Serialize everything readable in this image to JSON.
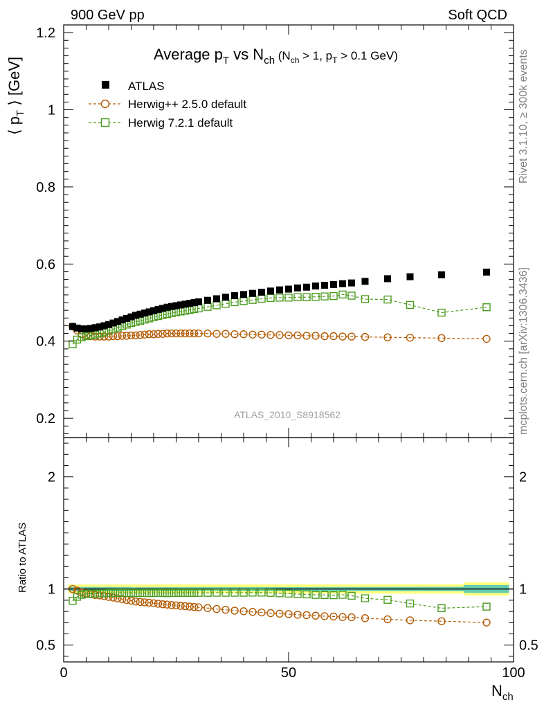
{
  "header": {
    "left": "900 GeV pp",
    "right": "Soft QCD"
  },
  "side_labels": {
    "rivet": "Rivet 3.1.10, ≥ 300k events",
    "mcplots": "mcplots.cern.ch [arXiv:1306.3436]"
  },
  "watermark": "ATLAS_2010_S8918562",
  "chart_data": {
    "type": "scatter",
    "title": "Average p_T vs N_ch (N_ch > 1, p_T > 0.1 GeV)",
    "title_parts": {
      "main": "Average p",
      "main_sub": "T",
      "vs": " vs N",
      "vs_sub": "ch",
      "cond_open": " (N",
      "cond_sub1": "ch",
      "cond_mid": " > 1, p",
      "cond_sub2": "T",
      "cond_end": " > 0.1 GeV)"
    },
    "xlabel": "N",
    "xlabel_sub": "ch",
    "ylabel_main_parts": {
      "open": "⟨ p",
      "sub": "T",
      "close": " ⟩ [GeV]"
    },
    "ylabel_ratio": "Ratio to ATLAS",
    "xlim": [
      0,
      100
    ],
    "ylim_main": [
      0.15,
      1.22
    ],
    "ylim_ratio": [
      0.35,
      2.35
    ],
    "x_ticks": [
      "0",
      "50",
      "100"
    ],
    "y_ticks_main": [
      "0.2",
      "0.4",
      "0.6",
      "0.8",
      "1",
      "1.2"
    ],
    "y_ticks_ratio": [
      "0.5",
      "1",
      "2"
    ],
    "x": [
      2,
      3,
      4,
      5,
      6,
      7,
      8,
      9,
      10,
      11,
      12,
      13,
      14,
      15,
      16,
      17,
      18,
      19,
      20,
      21,
      22,
      23,
      24,
      25,
      26,
      27,
      28,
      29,
      30,
      32,
      34,
      36,
      38,
      40,
      42,
      44,
      46,
      48,
      50,
      52,
      54,
      56,
      58,
      60,
      62,
      64,
      67,
      72,
      77,
      84,
      94
    ],
    "legend": [
      {
        "name": "ATLAS",
        "marker": "filled-square"
      },
      {
        "name": "Herwig++ 2.5.0 default",
        "marker": "open-circle"
      },
      {
        "name": "Herwig 7.2.1 default",
        "marker": "open-square"
      }
    ],
    "series": [
      {
        "name": "ATLAS",
        "color": "#000000",
        "values": [
          0.438,
          0.434,
          0.432,
          0.432,
          0.433,
          0.435,
          0.437,
          0.44,
          0.443,
          0.447,
          0.451,
          0.455,
          0.459,
          0.463,
          0.467,
          0.47,
          0.473,
          0.476,
          0.479,
          0.482,
          0.485,
          0.488,
          0.49,
          0.492,
          0.494,
          0.496,
          0.498,
          0.5,
          0.502,
          0.506,
          0.51,
          0.514,
          0.518,
          0.521,
          0.524,
          0.527,
          0.53,
          0.533,
          0.535,
          0.538,
          0.54,
          0.543,
          0.545,
          0.547,
          0.549,
          0.551,
          0.555,
          0.562,
          0.567,
          0.572,
          0.579
        ]
      },
      {
        "name": "Herwig++ 2.5.0 default",
        "color": "#b35900",
        "values": [
          0.438,
          0.428,
          0.418,
          0.415,
          0.413,
          0.412,
          0.412,
          0.412,
          0.412,
          0.413,
          0.413,
          0.414,
          0.414,
          0.415,
          0.415,
          0.416,
          0.417,
          0.418,
          0.418,
          0.419,
          0.419,
          0.42,
          0.42,
          0.42,
          0.42,
          0.42,
          0.42,
          0.42,
          0.42,
          0.42,
          0.419,
          0.419,
          0.418,
          0.418,
          0.417,
          0.417,
          0.416,
          0.416,
          0.415,
          0.415,
          0.414,
          0.414,
          0.413,
          0.413,
          0.412,
          0.412,
          0.411,
          0.41,
          0.409,
          0.408,
          0.406
        ]
      },
      {
        "name": "Herwig 7.2.1 default",
        "color": "#4b9b1e",
        "values": [
          0.392,
          0.404,
          0.41,
          0.413,
          0.415,
          0.417,
          0.42,
          0.423,
          0.427,
          0.431,
          0.435,
          0.439,
          0.443,
          0.447,
          0.45,
          0.453,
          0.456,
          0.459,
          0.462,
          0.465,
          0.468,
          0.47,
          0.473,
          0.475,
          0.477,
          0.479,
          0.481,
          0.483,
          0.485,
          0.489,
          0.493,
          0.497,
          0.501,
          0.504,
          0.507,
          0.51,
          0.512,
          0.513,
          0.513,
          0.514,
          0.514,
          0.515,
          0.516,
          0.517,
          0.521,
          0.518,
          0.509,
          0.508,
          0.494,
          0.474,
          0.488
        ]
      }
    ],
    "ratio_series": [
      {
        "name": "Herwig++ 2.5.0 default",
        "values": [
          1.0,
          0.986,
          0.968,
          0.961,
          0.954,
          0.947,
          0.943,
          0.936,
          0.93,
          0.924,
          0.916,
          0.91,
          0.902,
          0.896,
          0.889,
          0.885,
          0.881,
          0.878,
          0.873,
          0.869,
          0.864,
          0.861,
          0.857,
          0.854,
          0.85,
          0.847,
          0.843,
          0.84,
          0.837,
          0.83,
          0.822,
          0.815,
          0.807,
          0.802,
          0.796,
          0.791,
          0.785,
          0.78,
          0.776,
          0.771,
          0.767,
          0.762,
          0.758,
          0.755,
          0.75,
          0.748,
          0.74,
          0.73,
          0.721,
          0.713,
          0.701
        ]
      },
      {
        "name": "Herwig 7.2.1 default",
        "values": [
          0.895,
          0.931,
          0.949,
          0.956,
          0.958,
          0.959,
          0.961,
          0.961,
          0.964,
          0.964,
          0.965,
          0.965,
          0.965,
          0.965,
          0.964,
          0.964,
          0.964,
          0.964,
          0.964,
          0.965,
          0.965,
          0.963,
          0.965,
          0.965,
          0.966,
          0.966,
          0.966,
          0.966,
          0.966,
          0.966,
          0.967,
          0.967,
          0.967,
          0.967,
          0.968,
          0.968,
          0.966,
          0.962,
          0.959,
          0.955,
          0.952,
          0.948,
          0.947,
          0.945,
          0.949,
          0.94,
          0.917,
          0.904,
          0.871,
          0.829,
          0.843
        ]
      }
    ],
    "band_colors": {
      "stat": "#66ccb2",
      "total": "#ffff80"
    },
    "band_note": "ATLAS uncertainty bands around ratio 1"
  }
}
